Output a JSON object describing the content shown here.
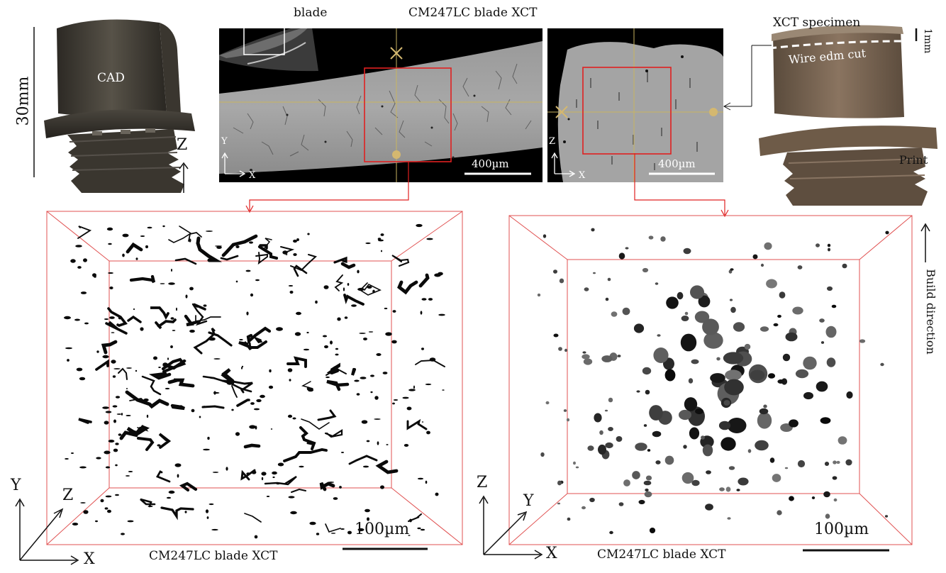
{
  "figure": {
    "cad": {
      "label": "CAD",
      "height_label": "30mm",
      "axis_label": "Z",
      "body_color": "#3e3a33"
    },
    "top_left_xct": {
      "inset_label": "blade",
      "title": "CM247LC blade XCT",
      "axis_y": "Y",
      "axis_x": "X",
      "scale_label": "400µm"
    },
    "top_right_xct": {
      "axis_z": "Z",
      "axis_x": "X",
      "scale_label": "400µm"
    },
    "print_photo": {
      "specimen_label": "XCT specimen",
      "scale_label": "1mm",
      "cut_label": "Wire edm cut",
      "print_label": "Print",
      "body_color": "#7a6550"
    },
    "bottom_left": {
      "axis_y": "Y",
      "axis_z": "Z",
      "axis_x": "X",
      "scale_label": "100µm",
      "caption": "CM247LC blade XCT"
    },
    "bottom_right": {
      "axis_z": "Z",
      "axis_y": "Y",
      "axis_x": "X",
      "scale_label": "100µm",
      "caption": "CM247LC blade XCT",
      "build_direction": "Build direction"
    },
    "colors": {
      "roi": "#e02020",
      "crosshair": "#c8b560",
      "marker": "#d4b870",
      "box": "#e05050"
    }
  }
}
